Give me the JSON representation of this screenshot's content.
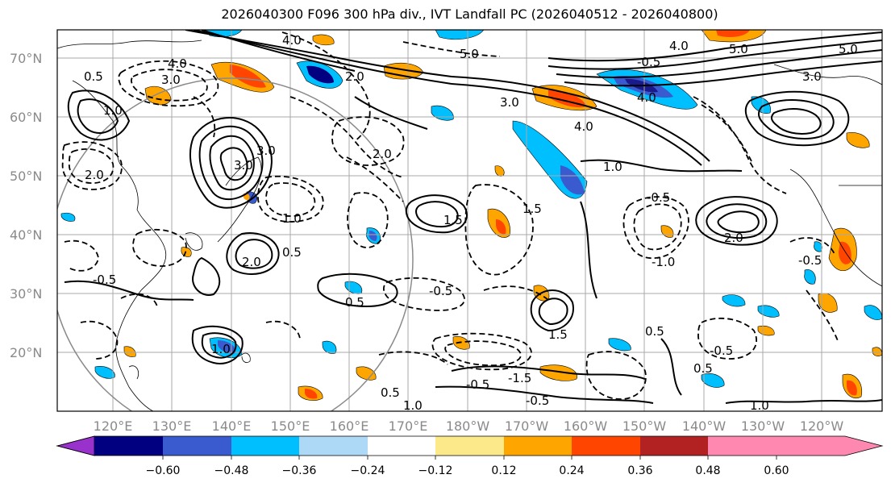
{
  "figure": {
    "title": "2026040300 F096 300 hPa div., IVT Landfall PC (2026040512 - 2026040800)"
  },
  "map": {
    "latitude_labels": [
      "70°N",
      "60°N",
      "50°N",
      "40°N",
      "30°N",
      "20°N"
    ],
    "longitude_labels": [
      "120°E",
      "130°E",
      "140°E",
      "150°E",
      "160°E",
      "170°E",
      "180°W",
      "170°W",
      "160°W",
      "150°W",
      "140°W",
      "130°W",
      "120°W"
    ],
    "contour_labels": [
      "4.0",
      "4.0",
      "3.0",
      "0.5",
      "1.0",
      "2.0",
      "5.0",
      "5.0",
      "4.0",
      "-0.5",
      "5.0",
      "3.0",
      "4.0",
      "4.0",
      "3.0",
      "3.0",
      "1.0",
      "2.0",
      "3.0",
      "2.0",
      "0.5",
      "1.0",
      "1.5",
      "-0.5",
      "1.5",
      "2.0",
      "2.0",
      "-0.5",
      "-0.5",
      "0.5",
      "-0.5",
      "0.5",
      "0.5",
      "1.0",
      "1.5",
      "0.5",
      "-1.5",
      "1.0",
      "-0.5",
      "-0.5",
      "-1.0",
      "-0.5",
      "1.0"
    ],
    "colors": {
      "neg_strong": "#1a1a8c",
      "neg_mid": "#3a5bd0",
      "neg_light": "#00bfff",
      "pos_light": "#ffa500",
      "pos_mid": "#ff4500",
      "pos_strong": "#b22222"
    }
  },
  "colorbar": {
    "tick_labels": [
      "−0.60",
      "−0.48",
      "−0.36",
      "−0.24",
      "−0.12",
      "0.12",
      "0.24",
      "0.36",
      "0.48",
      "0.60"
    ],
    "colors": [
      "#9932cc",
      "#000080",
      "#3a5bd0",
      "#00bfff",
      "#add8f6",
      "#ffffff",
      "#fce98a",
      "#ffa500",
      "#ff4500",
      "#b22222",
      "#ff88b0"
    ]
  }
}
